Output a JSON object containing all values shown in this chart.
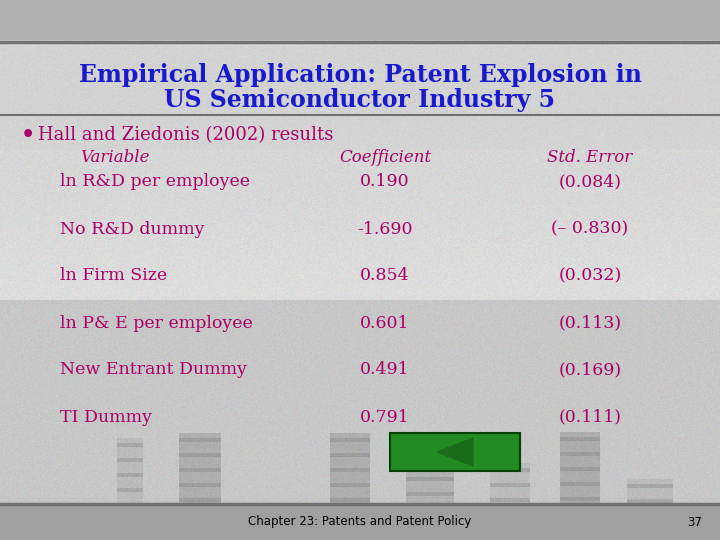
{
  "title_line1": "Empirical Application: Patent Explosion in",
  "title_line2": "US Semiconductor Industry 5",
  "title_color": "#1a1acd",
  "slide_bg_color": "#C0C0C0",
  "content_area_color": "#D8D8D8",
  "bullet_color": "#AA0066",
  "bullet_text": "Hall and Ziedonis (2002) results",
  "header_variable": "Variable",
  "header_coefficient": "Coefficient",
  "header_std_error": "Std. Error",
  "rows": [
    {
      "variable": "ln R&D per employee",
      "coefficient": "0.190",
      "std_error": "(0.084)"
    },
    {
      "variable": "No R&D dummy",
      "coefficient": "-1.690",
      "std_error": "(– 0.830)"
    },
    {
      "variable": "ln Firm Size",
      "coefficient": "0.854",
      "std_error": "(0.032)"
    },
    {
      "variable": "ln P& E per employee",
      "coefficient": "0.601",
      "std_error": "(0.113)"
    },
    {
      "variable": "New Entrant Dummy",
      "coefficient": "0.491",
      "std_error": "(0.169)"
    },
    {
      "variable": "TI Dummy",
      "coefficient": "0.791",
      "std_error": "(0.111)"
    }
  ],
  "footer_text": "Chapter 23: Patents and Patent Policy",
  "footer_page": "37",
  "footer_color": "#000000",
  "button_color": "#228B22",
  "arrow_color": "#1a6b1a",
  "top_bar_color": "#B0B0B0",
  "bottom_bar_color": "#A0A0A0",
  "separator_color": "#707070"
}
